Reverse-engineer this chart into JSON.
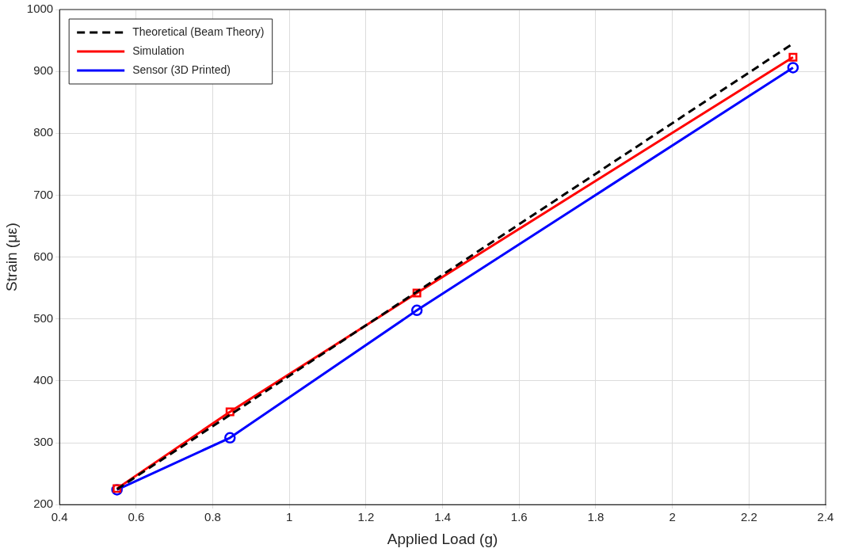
{
  "chart_data": {
    "type": "line",
    "xlabel": "Applied Load (g)",
    "ylabel": "Strain (με)",
    "x": [
      0.55,
      0.845,
      1.333,
      2.315
    ],
    "series": [
      {
        "name": "Theoretical (Beam Theory)",
        "color": "#000000",
        "values": [
          225,
          345,
          544,
          945
        ],
        "marker": "none",
        "line_style": "dashed"
      },
      {
        "name": "Simulation",
        "color": "#ff0000",
        "values": [
          226,
          350,
          542,
          923
        ],
        "marker": "square",
        "line_style": "solid"
      },
      {
        "name": "Sensor (3D Printed)",
        "color": "#0000ff",
        "values": [
          224,
          308,
          514,
          906
        ],
        "marker": "circle",
        "line_style": "solid"
      }
    ],
    "xlim": [
      0.4,
      2.4
    ],
    "xticks": [
      0.4,
      0.6,
      0.8,
      1,
      1.2,
      1.4,
      1.6,
      1.8,
      2,
      2.2,
      2.4
    ],
    "ylim": [
      200,
      1000
    ],
    "yticks": [
      200,
      300,
      400,
      500,
      600,
      700,
      800,
      900,
      1000
    ],
    "grid": true,
    "legend": "top left"
  }
}
